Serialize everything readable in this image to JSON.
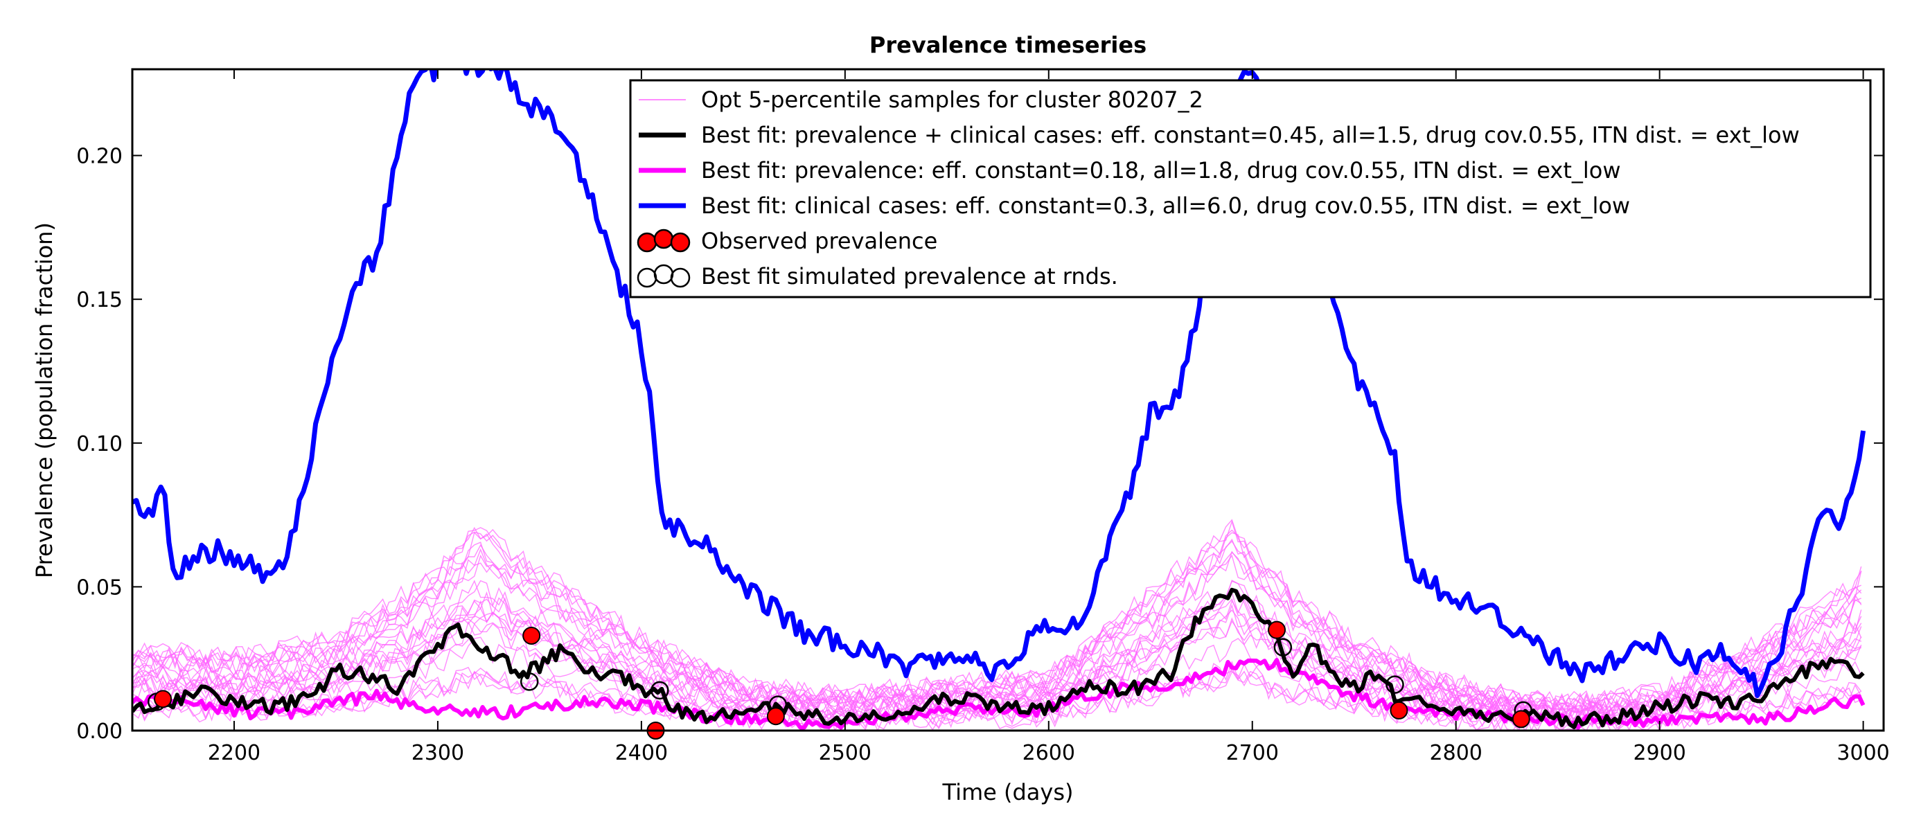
{
  "chart_data": {
    "type": "line",
    "title": "Prevalence timeseries",
    "xlabel": "Time (days)",
    "ylabel": "Prevalence (population fraction)",
    "xlim": [
      2150,
      3010
    ],
    "ylim": [
      0.0,
      0.23
    ],
    "xticks": [
      2200,
      2300,
      2400,
      2500,
      2600,
      2700,
      2800,
      2900,
      3000
    ],
    "yticks": [
      0.0,
      0.05,
      0.1,
      0.15,
      0.2
    ],
    "xtick_labels": [
      "2200",
      "2300",
      "2400",
      "2500",
      "2600",
      "2700",
      "2800",
      "2900",
      "3000"
    ],
    "ytick_labels": [
      "0.00",
      "0.05",
      "0.10",
      "0.15",
      "0.20"
    ],
    "grid": false,
    "legend_position": "top-right",
    "colors": {
      "samples": "#ff66ff",
      "best_combined": "#000000",
      "best_prevalence": "#ff00ff",
      "best_clinical": "#0000ff",
      "observed": "#ff0000"
    },
    "legend": [
      {
        "label": "Opt 5-percentile samples for cluster 80207_2",
        "style": "thin-line",
        "color": "#ff66ff"
      },
      {
        "label": "Best fit: prevalence + clinical cases: eff. constant=0.45, all=1.5, drug cov.0.55, ITN dist. = ext_low",
        "style": "thick-line",
        "color": "#000000"
      },
      {
        "label": "Best fit: prevalence: eff. constant=0.18, all=1.8, drug cov.0.55, ITN dist. = ext_low",
        "style": "thick-line",
        "color": "#ff00ff"
      },
      {
        "label": "Best fit: clinical cases: eff. constant=0.3, all=6.0, drug cov.0.55, ITN dist. = ext_low",
        "style": "thick-line",
        "color": "#0000ff"
      },
      {
        "label": "Observed prevalence",
        "style": "filled-circles",
        "color": "#ff0000"
      },
      {
        "label": "Best fit simulated prevalence at rnds.",
        "style": "open-circles",
        "color": "#000000"
      }
    ],
    "series": [
      {
        "name": "Best fit: clinical cases: eff. constant=0.3, all=6.0, drug cov.0.55, ITN dist. = ext_low",
        "color": "#0000ff",
        "x": [
          2150,
          2160,
          2165,
          2170,
          2180,
          2190,
          2200,
          2210,
          2220,
          2230,
          2240,
          2250,
          2260,
          2270,
          2280,
          2290,
          2300,
          2330,
          2340,
          2350,
          2360,
          2370,
          2380,
          2390,
          2400,
          2405,
          2410,
          2420,
          2430,
          2440,
          2450,
          2460,
          2470,
          2480,
          2490,
          2500,
          2510,
          2520,
          2530,
          2540,
          2550,
          2560,
          2570,
          2580,
          2590,
          2600,
          2610,
          2620,
          2630,
          2640,
          2650,
          2660,
          2670,
          2680,
          2690,
          2700,
          2730,
          2740,
          2750,
          2760,
          2770,
          2775,
          2780,
          2790,
          2800,
          2810,
          2820,
          2830,
          2840,
          2850,
          2860,
          2870,
          2880,
          2890,
          2900,
          2910,
          2920,
          2930,
          2940,
          2950,
          2960,
          2970,
          2980,
          2990,
          3000
        ],
        "y": [
          0.08,
          0.075,
          0.085,
          0.055,
          0.06,
          0.063,
          0.06,
          0.058,
          0.052,
          0.07,
          0.105,
          0.135,
          0.158,
          0.165,
          0.2,
          0.23,
          0.23,
          0.23,
          0.22,
          0.215,
          0.21,
          0.195,
          0.175,
          0.155,
          0.135,
          0.11,
          0.074,
          0.07,
          0.065,
          0.057,
          0.05,
          0.045,
          0.04,
          0.033,
          0.032,
          0.03,
          0.028,
          0.025,
          0.022,
          0.026,
          0.024,
          0.025,
          0.02,
          0.025,
          0.031,
          0.036,
          0.035,
          0.045,
          0.065,
          0.085,
          0.11,
          0.11,
          0.135,
          0.175,
          0.22,
          0.23,
          0.16,
          0.15,
          0.125,
          0.11,
          0.095,
          0.06,
          0.055,
          0.05,
          0.045,
          0.045,
          0.04,
          0.035,
          0.03,
          0.025,
          0.02,
          0.022,
          0.025,
          0.028,
          0.03,
          0.027,
          0.022,
          0.028,
          0.02,
          0.015,
          0.03,
          0.05,
          0.078,
          0.072,
          0.102
        ]
      },
      {
        "name": "Best fit: prevalence + clinical cases: eff. constant=0.45, all=1.5, drug cov.0.55, ITN dist. = ext_low",
        "color": "#000000",
        "x": [
          2150,
          2170,
          2180,
          2200,
          2220,
          2240,
          2250,
          2260,
          2270,
          2280,
          2290,
          2300,
          2310,
          2320,
          2330,
          2340,
          2350,
          2360,
          2370,
          2380,
          2390,
          2400,
          2410,
          2420,
          2440,
          2460,
          2480,
          2500,
          2520,
          2540,
          2560,
          2580,
          2600,
          2620,
          2640,
          2660,
          2670,
          2680,
          2690,
          2700,
          2710,
          2720,
          2730,
          2740,
          2750,
          2760,
          2770,
          2780,
          2800,
          2820,
          2840,
          2860,
          2880,
          2900,
          2920,
          2940,
          2960,
          2970,
          2980,
          2990,
          3000
        ],
        "y": [
          0.007,
          0.01,
          0.014,
          0.01,
          0.008,
          0.012,
          0.021,
          0.02,
          0.018,
          0.015,
          0.022,
          0.03,
          0.036,
          0.03,
          0.025,
          0.02,
          0.022,
          0.028,
          0.022,
          0.02,
          0.018,
          0.015,
          0.012,
          0.006,
          0.005,
          0.008,
          0.006,
          0.004,
          0.006,
          0.01,
          0.012,
          0.008,
          0.008,
          0.016,
          0.014,
          0.02,
          0.035,
          0.045,
          0.048,
          0.045,
          0.035,
          0.02,
          0.03,
          0.018,
          0.015,
          0.02,
          0.012,
          0.01,
          0.006,
          0.004,
          0.005,
          0.003,
          0.005,
          0.008,
          0.011,
          0.01,
          0.015,
          0.02,
          0.025,
          0.022,
          0.02
        ]
      },
      {
        "name": "Best fit: prevalence: eff. constant=0.18, all=1.8, drug cov.0.55, ITN dist. = ext_low",
        "color": "#ff00ff",
        "x": [
          2150,
          2170,
          2190,
          2210,
          2230,
          2250,
          2270,
          2290,
          2310,
          2330,
          2350,
          2370,
          2390,
          2410,
          2430,
          2450,
          2470,
          2500,
          2530,
          2560,
          2590,
          2620,
          2640,
          2660,
          2680,
          2700,
          2720,
          2740,
          2760,
          2780,
          2800,
          2830,
          2860,
          2890,
          2920,
          2950,
          2970,
          2990,
          3000
        ],
        "y": [
          0.01,
          0.01,
          0.008,
          0.006,
          0.006,
          0.01,
          0.012,
          0.008,
          0.007,
          0.006,
          0.008,
          0.01,
          0.009,
          0.008,
          0.005,
          0.004,
          0.003,
          0.003,
          0.005,
          0.008,
          0.006,
          0.012,
          0.015,
          0.016,
          0.02,
          0.025,
          0.021,
          0.015,
          0.01,
          0.007,
          0.006,
          0.004,
          0.003,
          0.003,
          0.004,
          0.004,
          0.006,
          0.01,
          0.01
        ]
      }
    ],
    "observed_prevalence": {
      "x": [
        2165,
        2346,
        2407,
        2466,
        2712,
        2772,
        2832
      ],
      "y": [
        0.011,
        0.033,
        0.0,
        0.005,
        0.035,
        0.007,
        0.004
      ]
    },
    "simulated_at_rounds": {
      "x": [
        2162,
        2345,
        2409,
        2467,
        2715,
        2770,
        2833
      ],
      "y": [
        0.01,
        0.017,
        0.014,
        0.009,
        0.029,
        0.016,
        0.007
      ]
    }
  }
}
